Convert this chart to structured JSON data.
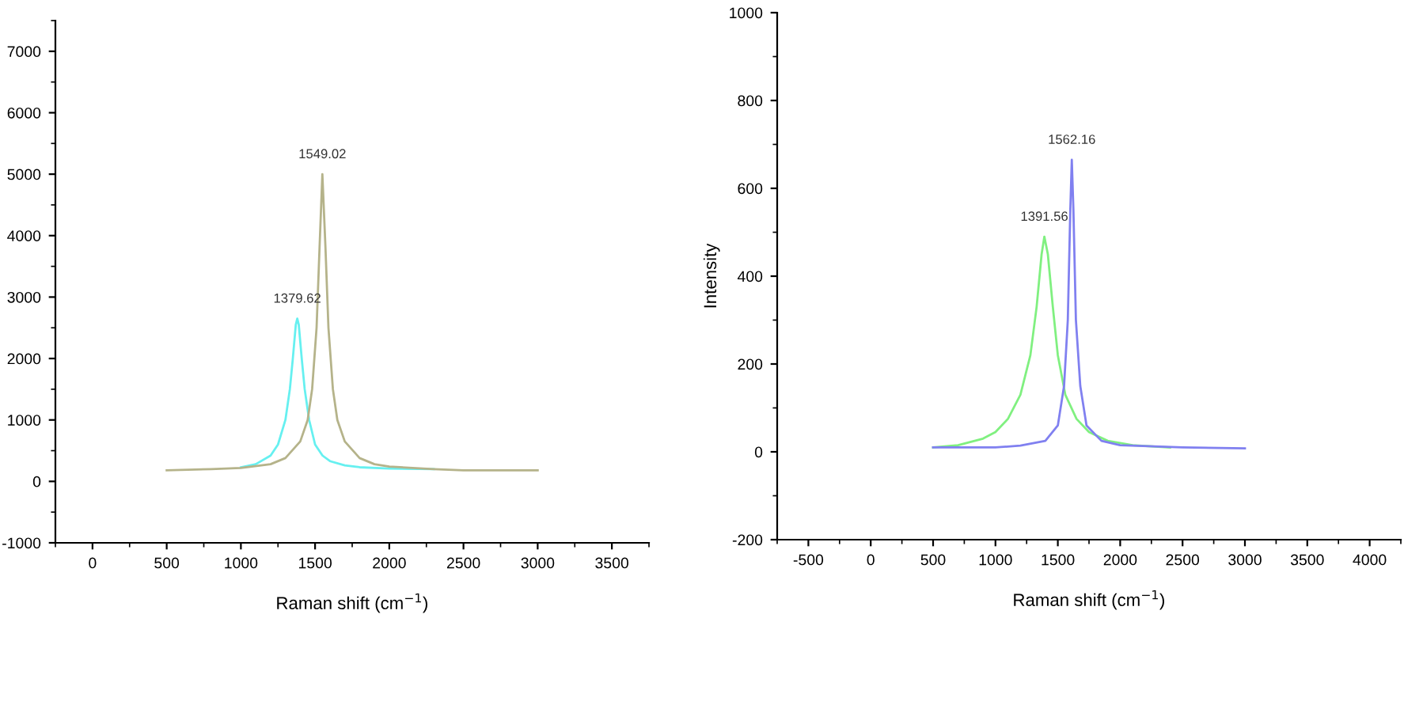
{
  "chart_data": [
    {
      "type": "line",
      "xlabel": "Raman shift (cm$^{−1}$)",
      "xlim": [
        -250,
        3750
      ],
      "xticks": [
        0,
        500,
        1000,
        1500,
        2000,
        2500,
        3000,
        3500
      ],
      "ylim": [
        -1000,
        7500
      ],
      "yticks": [
        -1000,
        0,
        1000,
        2000,
        3000,
        4000,
        5000,
        6000,
        7000
      ],
      "grid": false,
      "legend": false,
      "series": [
        {
          "color": "#66f0f0",
          "x": [
            1000,
            1100,
            1200,
            1250,
            1300,
            1330,
            1350,
            1370,
            1380,
            1390,
            1410,
            1430,
            1460,
            1500,
            1550,
            1600,
            1700,
            1800,
            2000,
            2300
          ],
          "values": [
            230,
            280,
            420,
            600,
            1000,
            1500,
            2000,
            2550,
            2650,
            2550,
            2000,
            1500,
            1000,
            600,
            420,
            330,
            260,
            230,
            210,
            200
          ]
        },
        {
          "color": "#b5b38a",
          "x": [
            500,
            800,
            1000,
            1200,
            1300,
            1400,
            1450,
            1480,
            1510,
            1530,
            1549,
            1570,
            1590,
            1620,
            1650,
            1700,
            1800,
            1900,
            2000,
            2300,
            2500,
            3000
          ],
          "values": [
            180,
            200,
            220,
            280,
            380,
            650,
            1000,
            1500,
            2500,
            3800,
            5000,
            3800,
            2500,
            1500,
            1000,
            650,
            380,
            280,
            240,
            200,
            180,
            180
          ]
        }
      ],
      "annotations": [
        {
          "text": "1379.62",
          "x": 1380,
          "y": 2650
        },
        {
          "text": "1549.02",
          "x": 1549,
          "y": 5000
        }
      ]
    },
    {
      "type": "line",
      "xlabel": "Raman shift (cm$^{−1}$)",
      "ylabel": "Intensity",
      "xlim": [
        -750,
        4250
      ],
      "xticks": [
        -500,
        0,
        500,
        1000,
        1500,
        2000,
        2500,
        3000,
        3500,
        4000
      ],
      "ylim": [
        -200,
        1000
      ],
      "yticks": [
        -200,
        0,
        200,
        400,
        600,
        800,
        1000
      ],
      "grid": false,
      "legend": false,
      "series": [
        {
          "color": "#80f080",
          "x": [
            500,
            700,
            900,
            1000,
            1100,
            1200,
            1280,
            1330,
            1370,
            1392,
            1420,
            1460,
            1500,
            1560,
            1650,
            1750,
            1900,
            2100,
            2400
          ],
          "values": [
            10,
            15,
            30,
            45,
            75,
            130,
            220,
            330,
            450,
            490,
            450,
            330,
            220,
            130,
            75,
            45,
            25,
            15,
            10
          ]
        },
        {
          "color": "#8080f0",
          "x": [
            500,
            1000,
            1200,
            1400,
            1500,
            1550,
            1580,
            1600,
            1612,
            1625,
            1645,
            1680,
            1730,
            1850,
            2000,
            2500,
            3000
          ],
          "values": [
            10,
            10,
            14,
            25,
            60,
            150,
            300,
            550,
            665,
            550,
            300,
            150,
            60,
            25,
            15,
            10,
            8
          ]
        }
      ],
      "annotations": [
        {
          "text": "1391.56",
          "x": 1392,
          "y": 490
        },
        {
          "text": "1562.16",
          "x": 1612,
          "y": 665
        }
      ]
    }
  ]
}
